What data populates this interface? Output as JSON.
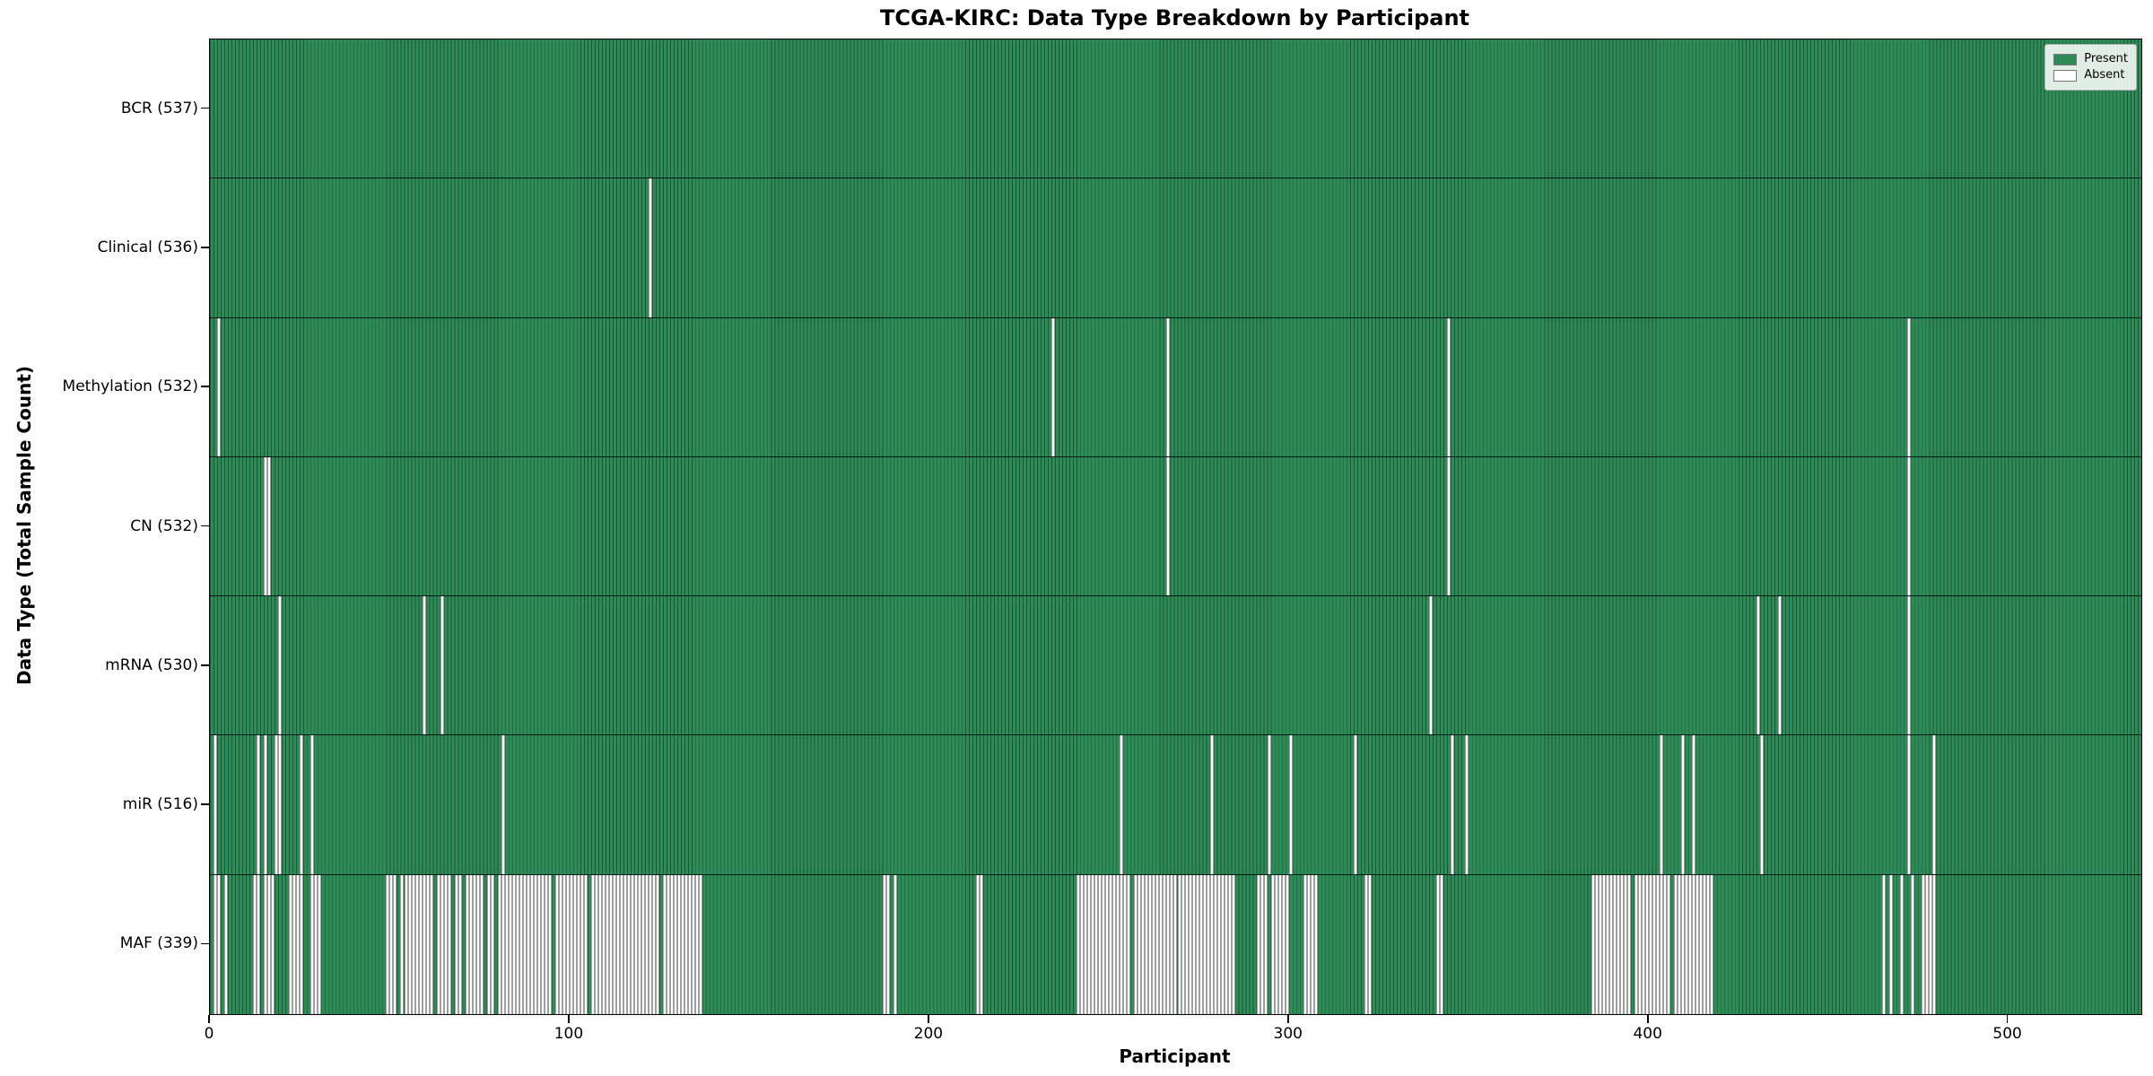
{
  "chart_data": {
    "type": "heatmap",
    "title": "TCGA-KIRC: Data Type Breakdown by Participant",
    "xlabel": "Participant",
    "ylabel": "Data Type (Total Sample Count)",
    "n_participants": 537,
    "x_ticks": [
      0,
      100,
      200,
      300,
      400,
      500
    ],
    "x_range": [
      0,
      537
    ],
    "grid": false,
    "legend_position": "upper right",
    "legend": [
      {
        "label": "Present",
        "color": "#2e8b57"
      },
      {
        "label": "Absent",
        "color": "#ffffff"
      }
    ],
    "colors": {
      "present": "#2e8b57",
      "present_edge": "#1c5737",
      "absent": "#ffffff",
      "absent_edge": "#9e9e9e"
    },
    "rows": [
      {
        "label": "BCR (537)",
        "present_count": 537,
        "absent": []
      },
      {
        "label": "Clinical (536)",
        "present_count": 536,
        "absent": [
          122
        ]
      },
      {
        "label": "Methylation (532)",
        "present_count": 532,
        "absent": [
          2,
          234,
          266,
          344,
          472
        ]
      },
      {
        "label": "CN (532)",
        "present_count": 532,
        "absent": [
          15,
          16,
          266,
          344,
          472
        ]
      },
      {
        "label": "mRNA (530)",
        "present_count": 530,
        "absent": [
          19,
          59,
          64,
          339,
          430,
          436,
          472
        ]
      },
      {
        "label": "miR (516)",
        "present_count": 516,
        "absent": [
          1,
          13,
          15,
          18,
          19,
          25,
          28,
          81,
          253,
          278,
          294,
          300,
          318,
          345,
          349,
          403,
          409,
          412,
          431,
          472,
          479
        ]
      },
      {
        "label": "MAF (339)",
        "present_count": 339,
        "absent": [
          1,
          2,
          4,
          12,
          13,
          15,
          16,
          17,
          22,
          23,
          24,
          25,
          28,
          29,
          30,
          49,
          50,
          51,
          53,
          54,
          55,
          56,
          57,
          58,
          59,
          60,
          61,
          63,
          64,
          65,
          66,
          68,
          69,
          71,
          72,
          73,
          74,
          75,
          77,
          78,
          80,
          81,
          82,
          83,
          84,
          85,
          86,
          87,
          88,
          89,
          90,
          91,
          92,
          93,
          94,
          96,
          97,
          98,
          99,
          100,
          101,
          102,
          103,
          104,
          106,
          107,
          108,
          109,
          110,
          111,
          112,
          113,
          114,
          115,
          116,
          117,
          118,
          119,
          120,
          121,
          122,
          123,
          124,
          126,
          127,
          128,
          129,
          130,
          131,
          132,
          133,
          134,
          135,
          136,
          187,
          188,
          190,
          213,
          214,
          241,
          242,
          243,
          244,
          245,
          246,
          247,
          248,
          249,
          250,
          251,
          252,
          253,
          254,
          255,
          257,
          258,
          259,
          260,
          261,
          262,
          263,
          264,
          265,
          266,
          267,
          268,
          269,
          270,
          271,
          272,
          273,
          274,
          275,
          276,
          277,
          278,
          279,
          280,
          281,
          282,
          283,
          284,
          291,
          292,
          293,
          295,
          296,
          297,
          298,
          299,
          304,
          305,
          306,
          307,
          321,
          322,
          341,
          342,
          384,
          385,
          386,
          387,
          388,
          389,
          390,
          391,
          392,
          393,
          394,
          396,
          397,
          398,
          399,
          400,
          401,
          402,
          403,
          404,
          405,
          407,
          408,
          409,
          410,
          411,
          412,
          413,
          414,
          415,
          416,
          417,
          465,
          467,
          470,
          473,
          476,
          477,
          478,
          479
        ]
      }
    ]
  }
}
